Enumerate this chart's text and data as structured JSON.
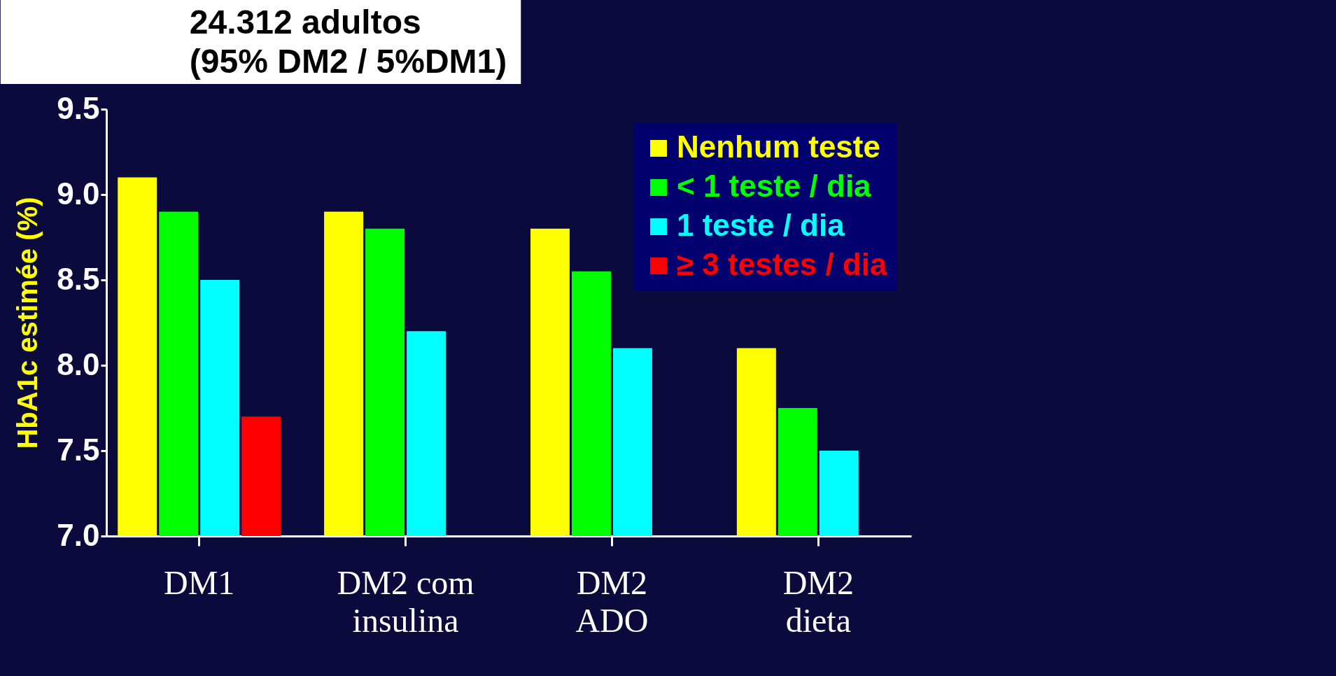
{
  "chart_data": {
    "type": "bar",
    "title": "24.312 adultos\n(95% DM2 / 5%DM1)",
    "ylabel": "HbA1c estimée (%)",
    "categories": [
      "DM1",
      "DM2 com\ninsulina",
      "DM2\nADO",
      "DM2\ndieta"
    ],
    "series": [
      {
        "name": "Nenhum teste",
        "color": "#ffff00",
        "values": [
          9.1,
          8.9,
          8.8,
          8.1
        ]
      },
      {
        "name": "< 1  teste / dia",
        "color": "#00ff00",
        "values": [
          8.9,
          8.8,
          8.55,
          7.75
        ]
      },
      {
        "name": "1 teste / dia",
        "color": "#00ffff",
        "values": [
          8.5,
          8.2,
          8.1,
          7.5
        ]
      },
      {
        "name": "≥ 3 testes / dia",
        "color": "#ff0000",
        "values": [
          7.7,
          null,
          null,
          null
        ]
      }
    ],
    "ylim": [
      7,
      9.5
    ],
    "yticks": [
      {
        "value": 7,
        "label": "7.0"
      },
      {
        "value": 7.5,
        "label": "7.5"
      },
      {
        "value": 8,
        "label": "8.0"
      },
      {
        "value": 8.5,
        "label": "8.5"
      },
      {
        "value": 9,
        "label": "9.0"
      },
      {
        "value": 9.5,
        "label": "9.5"
      }
    ],
    "grid": false,
    "legend": "top right"
  }
}
